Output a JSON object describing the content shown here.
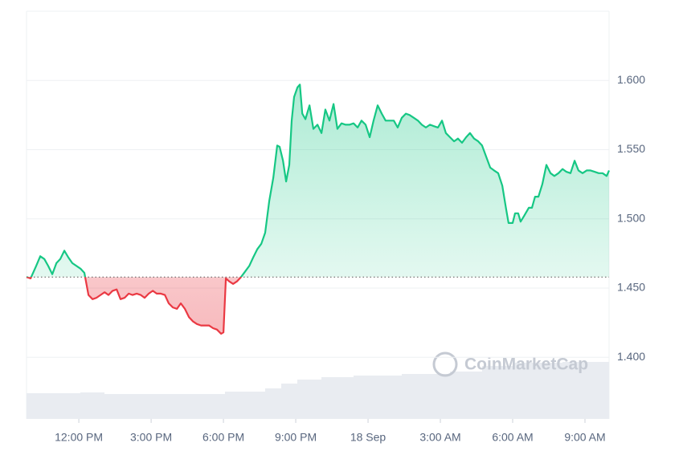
{
  "chart_data": {
    "type": "line",
    "watermark": "CoinMarketCap",
    "x": [
      -2.17,
      -2,
      -1.77,
      -1.6,
      -1.43,
      -1.27,
      -1.1,
      -0.93,
      -0.77,
      -0.6,
      -0.43,
      -0.27,
      0.07,
      0.23,
      0.4,
      0.57,
      0.73,
      0.9,
      1.07,
      1.23,
      1.4,
      1.57,
      1.73,
      1.9,
      2.07,
      2.23,
      2.4,
      2.57,
      2.73,
      2.9,
      3.07,
      3.23,
      3.4,
      3.57,
      3.73,
      3.9,
      4.07,
      4.23,
      4.4,
      4.57,
      4.73,
      4.9,
      5.07,
      5.23,
      5.4,
      5.57,
      5.73,
      5.9,
      6,
      6.1,
      6.23,
      6.4,
      6.57,
      6.73,
      6.9,
      7.07,
      7.23,
      7.4,
      7.57,
      7.73,
      7.9,
      8.07,
      8.23,
      8.33,
      8.47,
      8.6,
      8.73,
      8.83,
      8.93,
      9.07,
      9.17,
      9.27,
      9.4,
      9.57,
      9.73,
      9.9,
      10.07,
      10.23,
      10.4,
      10.57,
      10.73,
      10.9,
      11.07,
      11.23,
      11.4,
      11.57,
      11.73,
      11.9,
      12.07,
      12.23,
      12.4,
      12.57,
      12.73,
      12.9,
      13.07,
      13.23,
      13.4,
      13.57,
      13.73,
      13.9,
      14.07,
      14.23,
      14.4,
      14.57,
      14.73,
      14.9,
      15.07,
      15.23,
      15.4,
      15.57,
      15.73,
      15.9,
      16.07,
      16.23,
      16.4,
      16.57,
      16.73,
      16.9,
      17.07,
      17.23,
      17.4,
      17.57,
      17.73,
      17.83,
      18,
      18.1,
      18.23,
      18.33,
      18.47,
      18.67,
      18.8,
      18.93,
      19.07,
      19.23,
      19.4,
      19.57,
      19.73,
      19.9,
      20.07,
      20.23,
      20.4,
      20.57,
      20.73,
      20.9,
      21.07,
      21.23,
      21.4,
      21.57,
      21.73,
      21.9,
      22
    ],
    "series": [
      {
        "color_up": "#16c784",
        "color_down": "#ea3943",
        "values": [
          1.458,
          1.457,
          1.466,
          1.473,
          1.471,
          1.466,
          1.46,
          1.468,
          1.471,
          1.477,
          1.472,
          1.468,
          1.464,
          1.461,
          1.445,
          1.442,
          1.443,
          1.445,
          1.447,
          1.445,
          1.448,
          1.449,
          1.442,
          1.443,
          1.446,
          1.445,
          1.446,
          1.445,
          1.443,
          1.446,
          1.448,
          1.446,
          1.446,
          1.445,
          1.439,
          1.436,
          1.435,
          1.439,
          1.435,
          1.429,
          1.426,
          1.424,
          1.423,
          1.423,
          1.423,
          1.421,
          1.42,
          1.417,
          1.418,
          1.457,
          1.455,
          1.453,
          1.455,
          1.458,
          1.462,
          1.466,
          1.472,
          1.478,
          1.482,
          1.49,
          1.513,
          1.53,
          1.553,
          1.552,
          1.542,
          1.527,
          1.539,
          1.571,
          1.588,
          1.595,
          1.597,
          1.576,
          1.572,
          1.582,
          1.565,
          1.568,
          1.562,
          1.579,
          1.571,
          1.583,
          1.565,
          1.569,
          1.568,
          1.568,
          1.569,
          1.566,
          1.571,
          1.568,
          1.559,
          1.571,
          1.582,
          1.576,
          1.571,
          1.571,
          1.571,
          1.566,
          1.573,
          1.576,
          1.575,
          1.573,
          1.571,
          1.568,
          1.566,
          1.568,
          1.567,
          1.566,
          1.571,
          1.562,
          1.559,
          1.556,
          1.558,
          1.555,
          1.559,
          1.562,
          1.558,
          1.556,
          1.553,
          1.545,
          1.537,
          1.535,
          1.533,
          1.524,
          1.507,
          1.497,
          1.497,
          1.504,
          1.504,
          1.498,
          1.502,
          1.508,
          1.508,
          1.516,
          1.516,
          1.525,
          1.539,
          1.533,
          1.531,
          1.533,
          1.536,
          1.534,
          1.533,
          1.542,
          1.535,
          1.533,
          1.535,
          1.535,
          1.534,
          1.533,
          1.533,
          1.531,
          1.535
        ]
      }
    ],
    "baseline": 1.458,
    "xlim": [
      -2.17,
      22
    ],
    "xticks": [
      {
        "value": 0,
        "label": "12:00 PM"
      },
      {
        "value": 3,
        "label": "3:00 PM"
      },
      {
        "value": 6,
        "label": "6:00 PM"
      },
      {
        "value": 9,
        "label": "9:00 PM"
      },
      {
        "value": 12,
        "label": "18 Sep"
      },
      {
        "value": 15,
        "label": "3:00 AM"
      },
      {
        "value": 18,
        "label": "6:00 AM"
      },
      {
        "value": 21,
        "label": "9:00 AM"
      }
    ],
    "ylim": [
      1.3555,
      1.65
    ],
    "yticks": [
      {
        "value": 1.4,
        "label": "1.400"
      },
      {
        "value": 1.45,
        "label": "1.450"
      },
      {
        "value": 1.5,
        "label": "1.500"
      },
      {
        "value": 1.55,
        "label": "1.550"
      },
      {
        "value": 1.6,
        "label": "1.600"
      }
    ],
    "grid": true
  }
}
